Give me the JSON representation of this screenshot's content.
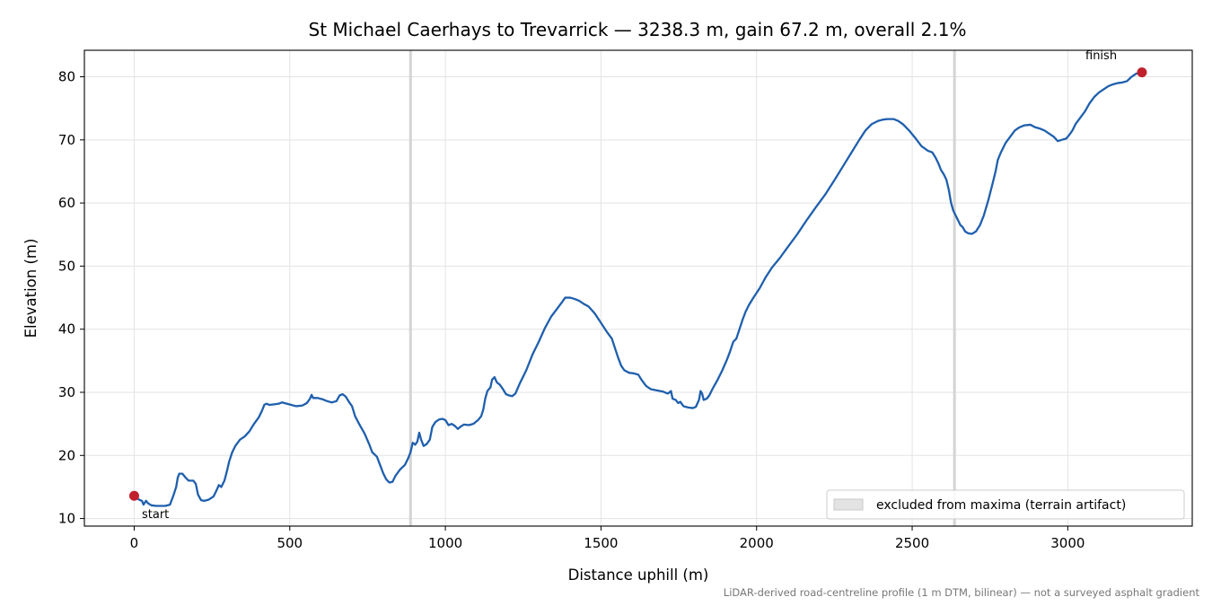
{
  "chart_data": {
    "type": "line",
    "title": "St Michael Caerhays to Trevarrick — 3238.3 m, gain 67.2 m, overall 2.1%",
    "xlabel": "Distance uphill (m)",
    "ylabel": "Elevation (m)",
    "xlim": [
      -160,
      3400
    ],
    "ylim": [
      8.8,
      84.2
    ],
    "xticks": [
      0,
      500,
      1000,
      1500,
      2000,
      2500,
      3000
    ],
    "yticks": [
      10,
      20,
      30,
      40,
      50,
      60,
      70,
      80
    ],
    "grid": true,
    "legend_position": "lower-right",
    "legend_label": "excluded from maxima (terrain artifact)",
    "excluded_distances": [
      888,
      2636
    ],
    "line_color": "#1f5fad",
    "marker_color": "#c0202b",
    "start_label": "start",
    "finish_label": "finish",
    "footnote": "LiDAR-derived road-centreline profile (1 m DTM, bilinear) — not a surveyed asphalt gradient",
    "series": [
      {
        "points": [
          [
            0,
            13.6
          ],
          [
            15,
            13.0
          ],
          [
            25,
            12.8
          ],
          [
            30,
            12.2
          ],
          [
            38,
            12.8
          ],
          [
            45,
            12.4
          ],
          [
            55,
            12.1
          ],
          [
            70,
            12.0
          ],
          [
            85,
            12.0
          ],
          [
            100,
            12.0
          ],
          [
            115,
            12.2
          ],
          [
            125,
            13.5
          ],
          [
            135,
            15.0
          ],
          [
            140,
            16.5
          ],
          [
            145,
            17.1
          ],
          [
            155,
            17.1
          ],
          [
            165,
            16.5
          ],
          [
            175,
            16.0
          ],
          [
            190,
            16.0
          ],
          [
            198,
            15.5
          ],
          [
            205,
            13.8
          ],
          [
            215,
            12.9
          ],
          [
            225,
            12.8
          ],
          [
            240,
            13.0
          ],
          [
            255,
            13.5
          ],
          [
            265,
            14.5
          ],
          [
            272,
            15.3
          ],
          [
            280,
            15.0
          ],
          [
            290,
            16.0
          ],
          [
            298,
            17.5
          ],
          [
            305,
            19.0
          ],
          [
            315,
            20.5
          ],
          [
            325,
            21.5
          ],
          [
            340,
            22.5
          ],
          [
            355,
            23.0
          ],
          [
            370,
            23.8
          ],
          [
            385,
            25.0
          ],
          [
            400,
            26.0
          ],
          [
            410,
            27.0
          ],
          [
            418,
            28.0
          ],
          [
            425,
            28.2
          ],
          [
            435,
            28.0
          ],
          [
            450,
            28.1
          ],
          [
            465,
            28.2
          ],
          [
            475,
            28.4
          ],
          [
            490,
            28.2
          ],
          [
            505,
            28.0
          ],
          [
            520,
            27.8
          ],
          [
            540,
            27.9
          ],
          [
            555,
            28.3
          ],
          [
            565,
            29.0
          ],
          [
            570,
            29.6
          ],
          [
            575,
            29.1
          ],
          [
            590,
            29.1
          ],
          [
            605,
            28.9
          ],
          [
            620,
            28.6
          ],
          [
            635,
            28.4
          ],
          [
            650,
            28.6
          ],
          [
            660,
            29.5
          ],
          [
            670,
            29.7
          ],
          [
            680,
            29.3
          ],
          [
            690,
            28.5
          ],
          [
            700,
            27.8
          ],
          [
            710,
            26.2
          ],
          [
            725,
            24.8
          ],
          [
            740,
            23.5
          ],
          [
            755,
            21.8
          ],
          [
            765,
            20.5
          ],
          [
            780,
            19.8
          ],
          [
            790,
            18.5
          ],
          [
            800,
            17.2
          ],
          [
            810,
            16.2
          ],
          [
            820,
            15.7
          ],
          [
            830,
            15.8
          ],
          [
            840,
            16.8
          ],
          [
            855,
            17.8
          ],
          [
            870,
            18.5
          ],
          [
            880,
            19.5
          ],
          [
            888,
            20.5
          ],
          [
            895,
            22.0
          ],
          [
            903,
            21.7
          ],
          [
            910,
            22.2
          ],
          [
            916,
            23.6
          ],
          [
            922,
            22.5
          ],
          [
            930,
            21.5
          ],
          [
            940,
            21.8
          ],
          [
            950,
            22.5
          ],
          [
            958,
            24.5
          ],
          [
            968,
            25.3
          ],
          [
            980,
            25.7
          ],
          [
            990,
            25.8
          ],
          [
            1000,
            25.6
          ],
          [
            1010,
            24.8
          ],
          [
            1020,
            25.0
          ],
          [
            1030,
            24.7
          ],
          [
            1040,
            24.2
          ],
          [
            1050,
            24.6
          ],
          [
            1060,
            24.9
          ],
          [
            1075,
            24.8
          ],
          [
            1090,
            25.0
          ],
          [
            1105,
            25.6
          ],
          [
            1115,
            26.2
          ],
          [
            1122,
            27.3
          ],
          [
            1128,
            29.0
          ],
          [
            1135,
            30.2
          ],
          [
            1145,
            30.8
          ],
          [
            1150,
            32.0
          ],
          [
            1158,
            32.4
          ],
          [
            1165,
            31.6
          ],
          [
            1175,
            31.2
          ],
          [
            1185,
            30.5
          ],
          [
            1195,
            29.7
          ],
          [
            1205,
            29.5
          ],
          [
            1215,
            29.4
          ],
          [
            1225,
            29.8
          ],
          [
            1240,
            31.5
          ],
          [
            1260,
            33.5
          ],
          [
            1280,
            36.0
          ],
          [
            1300,
            38.0
          ],
          [
            1320,
            40.2
          ],
          [
            1340,
            42.0
          ],
          [
            1360,
            43.3
          ],
          [
            1375,
            44.3
          ],
          [
            1385,
            45.0
          ],
          [
            1400,
            45.0
          ],
          [
            1415,
            44.8
          ],
          [
            1430,
            44.5
          ],
          [
            1445,
            44.0
          ],
          [
            1460,
            43.6
          ],
          [
            1480,
            42.5
          ],
          [
            1500,
            41.0
          ],
          [
            1520,
            39.5
          ],
          [
            1535,
            38.5
          ],
          [
            1545,
            37.0
          ],
          [
            1555,
            35.5
          ],
          [
            1565,
            34.2
          ],
          [
            1575,
            33.5
          ],
          [
            1590,
            33.1
          ],
          [
            1605,
            33.0
          ],
          [
            1620,
            32.8
          ],
          [
            1630,
            32.0
          ],
          [
            1645,
            31.0
          ],
          [
            1660,
            30.5
          ],
          [
            1680,
            30.3
          ],
          [
            1700,
            30.1
          ],
          [
            1715,
            29.8
          ],
          [
            1725,
            30.2
          ],
          [
            1730,
            29.0
          ],
          [
            1740,
            28.8
          ],
          [
            1748,
            28.3
          ],
          [
            1755,
            28.5
          ],
          [
            1765,
            27.8
          ],
          [
            1780,
            27.6
          ],
          [
            1795,
            27.5
          ],
          [
            1805,
            27.7
          ],
          [
            1815,
            28.8
          ],
          [
            1820,
            30.2
          ],
          [
            1825,
            29.8
          ],
          [
            1830,
            28.8
          ],
          [
            1840,
            29.0
          ],
          [
            1848,
            29.5
          ],
          [
            1858,
            30.5
          ],
          [
            1875,
            32.0
          ],
          [
            1890,
            33.5
          ],
          [
            1905,
            35.2
          ],
          [
            1915,
            36.5
          ],
          [
            1925,
            38.0
          ],
          [
            1935,
            38.5
          ],
          [
            1945,
            40.0
          ],
          [
            1955,
            41.5
          ],
          [
            1965,
            42.8
          ],
          [
            1975,
            43.8
          ],
          [
            1990,
            45.0
          ],
          [
            2010,
            46.5
          ],
          [
            2030,
            48.3
          ],
          [
            2050,
            49.8
          ],
          [
            2075,
            51.3
          ],
          [
            2100,
            53.0
          ],
          [
            2130,
            55.0
          ],
          [
            2160,
            57.2
          ],
          [
            2190,
            59.3
          ],
          [
            2220,
            61.3
          ],
          [
            2250,
            63.6
          ],
          [
            2280,
            66.0
          ],
          [
            2305,
            68.0
          ],
          [
            2330,
            70.0
          ],
          [
            2350,
            71.5
          ],
          [
            2370,
            72.5
          ],
          [
            2390,
            73.0
          ],
          [
            2405,
            73.2
          ],
          [
            2420,
            73.3
          ],
          [
            2440,
            73.3
          ],
          [
            2455,
            73.0
          ],
          [
            2470,
            72.5
          ],
          [
            2490,
            71.5
          ],
          [
            2510,
            70.3
          ],
          [
            2530,
            69.0
          ],
          [
            2550,
            68.3
          ],
          [
            2565,
            68.0
          ],
          [
            2575,
            67.2
          ],
          [
            2585,
            66.2
          ],
          [
            2592,
            65.3
          ],
          [
            2602,
            64.5
          ],
          [
            2610,
            63.7
          ],
          [
            2618,
            62.0
          ],
          [
            2625,
            60.0
          ],
          [
            2632,
            58.8
          ],
          [
            2640,
            58.0
          ],
          [
            2648,
            57.2
          ],
          [
            2655,
            56.5
          ],
          [
            2662,
            56.2
          ],
          [
            2670,
            55.5
          ],
          [
            2680,
            55.2
          ],
          [
            2692,
            55.1
          ],
          [
            2705,
            55.5
          ],
          [
            2718,
            56.5
          ],
          [
            2730,
            58.0
          ],
          [
            2745,
            60.5
          ],
          [
            2758,
            63.0
          ],
          [
            2768,
            65.0
          ],
          [
            2775,
            66.8
          ],
          [
            2785,
            68.0
          ],
          [
            2800,
            69.5
          ],
          [
            2815,
            70.5
          ],
          [
            2830,
            71.5
          ],
          [
            2845,
            72.0
          ],
          [
            2860,
            72.3
          ],
          [
            2880,
            72.4
          ],
          [
            2895,
            72.0
          ],
          [
            2910,
            71.8
          ],
          [
            2925,
            71.5
          ],
          [
            2940,
            71.0
          ],
          [
            2955,
            70.5
          ],
          [
            2968,
            69.8
          ],
          [
            2980,
            70.0
          ],
          [
            2995,
            70.2
          ],
          [
            3005,
            70.8
          ],
          [
            3015,
            71.5
          ],
          [
            3025,
            72.5
          ],
          [
            3040,
            73.5
          ],
          [
            3055,
            74.5
          ],
          [
            3070,
            75.8
          ],
          [
            3085,
            76.8
          ],
          [
            3100,
            77.5
          ],
          [
            3115,
            78.0
          ],
          [
            3130,
            78.5
          ],
          [
            3145,
            78.8
          ],
          [
            3160,
            79.0
          ],
          [
            3175,
            79.1
          ],
          [
            3190,
            79.3
          ],
          [
            3205,
            80.0
          ],
          [
            3220,
            80.5
          ],
          [
            3238.3,
            80.7
          ]
        ]
      }
    ]
  }
}
